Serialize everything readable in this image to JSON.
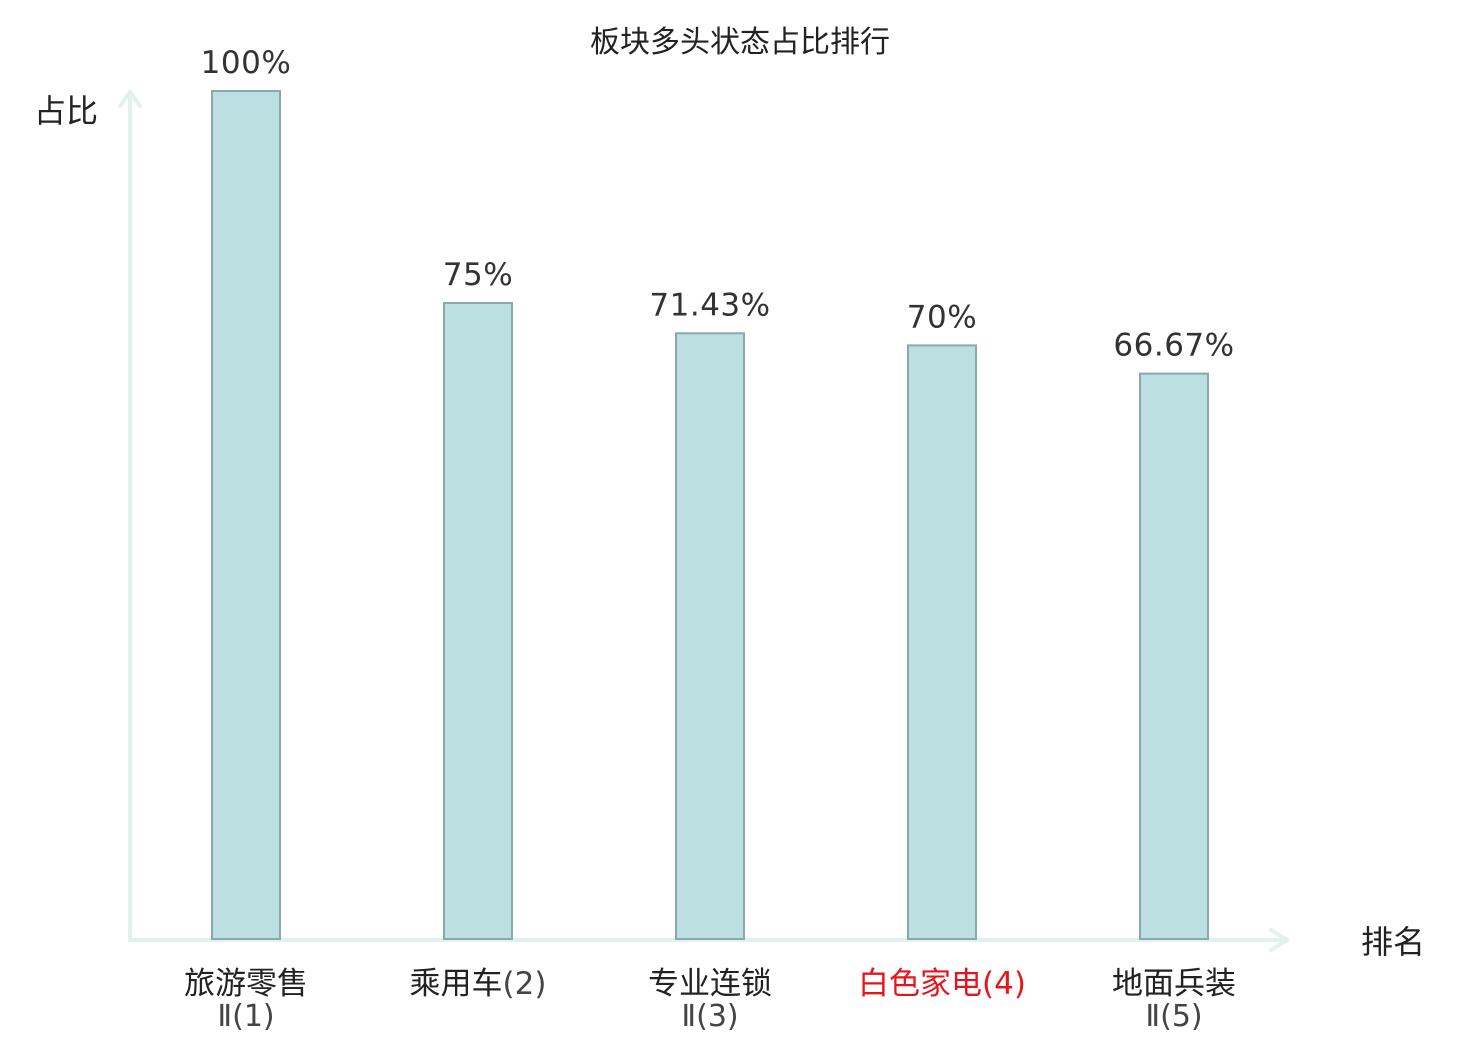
{
  "chart_data": {
    "type": "bar",
    "title": "板块多头状态占比排行",
    "ylabel": "占比",
    "xlabel": "排名",
    "ylim": [
      0,
      100
    ],
    "grid": false,
    "categories": [
      {
        "name": "旅游零售",
        "rank": "Ⅱ(1)",
        "highlight": false
      },
      {
        "name": "乘用车",
        "rank": "(2)",
        "highlight": false
      },
      {
        "name": "专业连锁",
        "rank": "Ⅱ(3)",
        "highlight": false
      },
      {
        "name": "白色家电",
        "rank": "(4)",
        "highlight": true
      },
      {
        "name": "地面兵装",
        "rank": "Ⅱ(5)",
        "highlight": false
      }
    ],
    "values": [
      100,
      75,
      71.43,
      70,
      66.67
    ],
    "value_labels": [
      "100%",
      "75%",
      "71.43%",
      "70%",
      "66.67%"
    ]
  },
  "colors": {
    "bar_fill": "#bce0e1",
    "bar_stroke": "#8aa9aa",
    "axis": "#dff2ee",
    "text": "#222222",
    "value_text": "#333333",
    "highlight": "#e8141c",
    "rank_text": "#444444"
  }
}
